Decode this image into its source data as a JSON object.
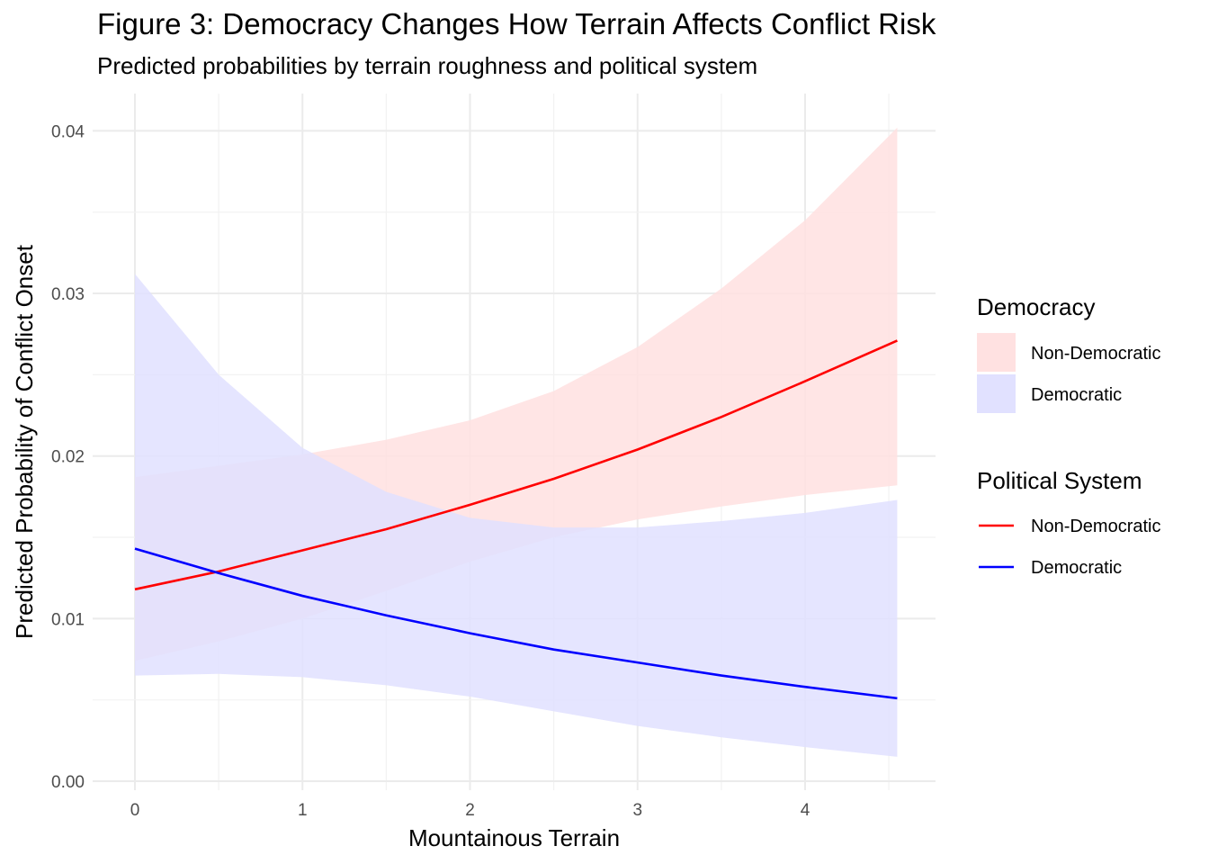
{
  "title": "Figure 3: Democracy Changes How Terrain Affects Conflict Risk",
  "subtitle": "Predicted probabilities by terrain roughness and political system",
  "chart_data": {
    "type": "line",
    "title": "Figure 3: Democracy Changes How Terrain Affects Conflict Risk",
    "subtitle": "Predicted probabilities by terrain roughness and political system",
    "xlabel": "Mountainous Terrain",
    "ylabel": "Predicted Probability of Conflict Onset",
    "xlim": [
      -0.25,
      4.8
    ],
    "ylim": [
      0,
      0.042
    ],
    "x_ticks": [
      0,
      1,
      2,
      3,
      4
    ],
    "x_tick_labels": [
      "0",
      "1",
      "2",
      "3",
      "4"
    ],
    "y_ticks": [
      0,
      0.01,
      0.02,
      0.03,
      0.04
    ],
    "y_tick_labels": [
      "0.00",
      "0.01",
      "0.02",
      "0.03",
      "0.04"
    ],
    "grid": true,
    "legend_position": "right",
    "x": [
      0,
      0.5,
      1,
      1.5,
      2,
      2.5,
      3,
      3.5,
      4,
      4.55
    ],
    "series": [
      {
        "name": "Non-Democratic",
        "color": "#ff0000",
        "fill": "#ffe1e1",
        "values": [
          0.0118,
          0.0129,
          0.0142,
          0.0155,
          0.017,
          0.0186,
          0.0204,
          0.0224,
          0.0246,
          0.0271
        ],
        "lower": [
          0.0074,
          0.0086,
          0.01,
          0.0117,
          0.0135,
          0.015,
          0.0161,
          0.0169,
          0.0176,
          0.0182
        ],
        "upper": [
          0.0187,
          0.0194,
          0.0201,
          0.021,
          0.0222,
          0.024,
          0.0267,
          0.0303,
          0.0345,
          0.0402
        ]
      },
      {
        "name": "Democratic",
        "color": "#0000ff",
        "fill": "#e1e1ff",
        "values": [
          0.0143,
          0.0128,
          0.0114,
          0.0102,
          0.0091,
          0.0081,
          0.0073,
          0.0065,
          0.0058,
          0.0051
        ],
        "lower": [
          0.0065,
          0.0066,
          0.0064,
          0.0059,
          0.0052,
          0.0043,
          0.0034,
          0.0027,
          0.0021,
          0.0015
        ],
        "upper": [
          0.0312,
          0.025,
          0.0205,
          0.0178,
          0.0162,
          0.0156,
          0.0156,
          0.016,
          0.0165,
          0.0173
        ]
      }
    ],
    "legends": [
      {
        "title": "Democracy",
        "kind": "fill",
        "entries": [
          "Non-Democratic",
          "Democratic"
        ]
      },
      {
        "title": "Political System",
        "kind": "line",
        "entries": [
          "Non-Democratic",
          "Democratic"
        ]
      }
    ]
  }
}
